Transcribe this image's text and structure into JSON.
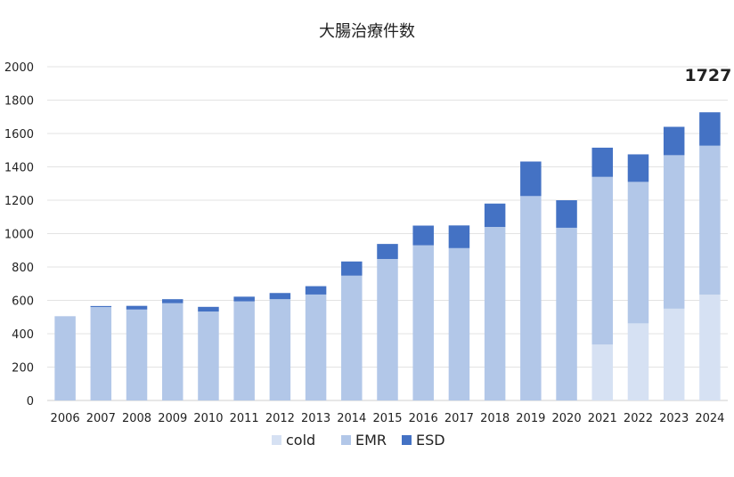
{
  "chart_data": {
    "type": "bar",
    "stacked": true,
    "title": "大腸治療件数",
    "categories": [
      "2006",
      "2007",
      "2008",
      "2009",
      "2010",
      "2011",
      "2012",
      "2013",
      "2014",
      "2015",
      "2016",
      "2017",
      "2018",
      "2019",
      "2020",
      "2021",
      "2022",
      "2023",
      "2024"
    ],
    "series": [
      {
        "name": "cold",
        "color": "#d6e1f3",
        "values": [
          0,
          0,
          0,
          0,
          0,
          0,
          0,
          0,
          0,
          0,
          0,
          0,
          0,
          0,
          0,
          335,
          462,
          550,
          634
        ]
      },
      {
        "name": "EMR",
        "color": "#b2c7e8",
        "values": [
          505,
          560,
          545,
          583,
          533,
          594,
          607,
          635,
          748,
          848,
          930,
          913,
          1040,
          1225,
          1035,
          1005,
          848,
          920,
          893
        ]
      },
      {
        "name": "ESD",
        "color": "#4472c4",
        "values": [
          0,
          6,
          22,
          24,
          28,
          28,
          37,
          50,
          85,
          90,
          118,
          136,
          140,
          207,
          165,
          175,
          165,
          170,
          200
        ]
      }
    ],
    "ylim": [
      0,
      2000
    ],
    "yticks": [
      "0",
      "200",
      "400",
      "600",
      "800",
      "1000",
      "1200",
      "1400",
      "1600",
      "1800",
      "2000"
    ],
    "annotation": {
      "category": "2024",
      "text": "1727"
    },
    "grid": true,
    "legend_position": "bottom"
  }
}
